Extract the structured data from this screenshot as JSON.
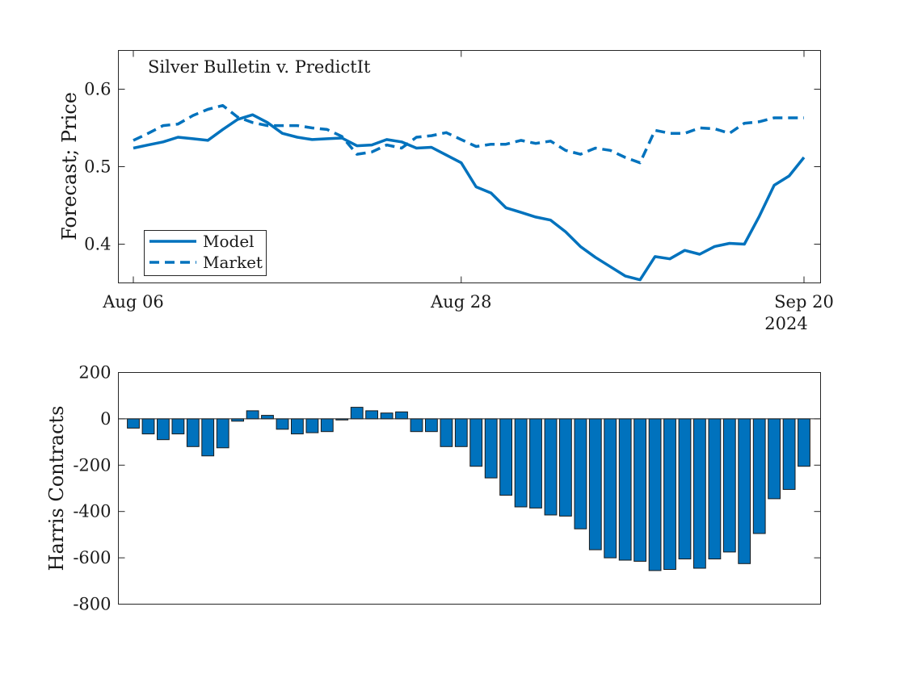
{
  "chart_data": [
    {
      "type": "line",
      "title": "Silver Bulletin v. PredictIt",
      "xlabel": "",
      "ylabel": "Forecast; Price",
      "xlim": [
        0,
        45
      ],
      "ylim": [
        0.35,
        0.65
      ],
      "yticks": [
        0.4,
        0.5,
        0.6
      ],
      "ytick_labels": [
        "0.4",
        "0.5",
        "0.6"
      ],
      "xticks": [
        0,
        22,
        45
      ],
      "xtick_labels": [
        "Aug 06",
        "Aug 28",
        "Sep 20"
      ],
      "x_secondary_label": "2024",
      "legend_position": "bottom-left",
      "grid": false,
      "color": "#0072bd",
      "series": [
        {
          "name": "Model",
          "style": "solid",
          "x": [
            0,
            1,
            2,
            3,
            4,
            5,
            6,
            7,
            8,
            9,
            10,
            11,
            12,
            13,
            14,
            15,
            16,
            17,
            18,
            19,
            20,
            21,
            22,
            23,
            24,
            25,
            26,
            27,
            28,
            29,
            30,
            31,
            32,
            33,
            34,
            35,
            36,
            37,
            38,
            39,
            40,
            41,
            42,
            43,
            44,
            45
          ],
          "values": [
            0.524,
            0.528,
            0.532,
            0.538,
            0.536,
            0.534,
            0.548,
            0.561,
            0.567,
            0.557,
            0.543,
            0.538,
            0.535,
            0.536,
            0.537,
            0.527,
            0.528,
            0.535,
            0.532,
            0.524,
            0.525,
            0.515,
            0.505,
            0.474,
            0.466,
            0.447,
            0.441,
            0.435,
            0.431,
            0.416,
            0.397,
            0.383,
            0.371,
            0.359,
            0.354,
            0.384,
            0.381,
            0.392,
            0.387,
            0.397,
            0.401,
            0.4,
            0.436,
            0.476,
            0.488,
            0.512
          ]
        },
        {
          "name": "Market",
          "style": "dashed",
          "x": [
            0,
            1,
            2,
            3,
            4,
            5,
            6,
            7,
            8,
            9,
            10,
            11,
            12,
            13,
            14,
            15,
            16,
            17,
            18,
            19,
            20,
            21,
            22,
            23,
            24,
            25,
            26,
            27,
            28,
            29,
            30,
            31,
            32,
            33,
            34,
            35,
            36,
            37,
            38,
            39,
            40,
            41,
            42,
            43,
            44,
            45
          ],
          "values": [
            0.534,
            0.543,
            0.553,
            0.555,
            0.566,
            0.574,
            0.579,
            0.564,
            0.557,
            0.553,
            0.553,
            0.553,
            0.55,
            0.548,
            0.539,
            0.516,
            0.519,
            0.528,
            0.524,
            0.538,
            0.54,
            0.544,
            0.535,
            0.526,
            0.529,
            0.529,
            0.534,
            0.53,
            0.533,
            0.521,
            0.516,
            0.524,
            0.521,
            0.512,
            0.505,
            0.547,
            0.543,
            0.543,
            0.55,
            0.549,
            0.543,
            0.556,
            0.558,
            0.563,
            0.563,
            0.563
          ]
        }
      ]
    },
    {
      "type": "bar",
      "title": "",
      "xlabel": "",
      "ylabel": "Harris Contracts",
      "xlim": [
        0,
        45
      ],
      "ylim": [
        -800,
        200
      ],
      "yticks": [
        -800,
        -600,
        -400,
        -200,
        0,
        200
      ],
      "ytick_labels": [
        "-800",
        "-600",
        "-400",
        "-200",
        "0",
        "200"
      ],
      "grid": false,
      "color": "#0072bd",
      "series": [
        {
          "name": "",
          "x": [
            0,
            1,
            2,
            3,
            4,
            5,
            6,
            7,
            8,
            9,
            10,
            11,
            12,
            13,
            14,
            15,
            16,
            17,
            18,
            19,
            20,
            21,
            22,
            23,
            24,
            25,
            26,
            27,
            28,
            29,
            30,
            31,
            32,
            33,
            34,
            35,
            36,
            37,
            38,
            39,
            40,
            41,
            42,
            43,
            44,
            45
          ],
          "values": [
            -40,
            -65,
            -90,
            -65,
            -120,
            -160,
            -125,
            -10,
            35,
            15,
            -45,
            -65,
            -60,
            -55,
            -5,
            50,
            35,
            25,
            30,
            -55,
            -55,
            -120,
            -120,
            -205,
            -255,
            -330,
            -380,
            -385,
            -415,
            -420,
            -475,
            -565,
            -600,
            -610,
            -615,
            -655,
            -650,
            -605,
            -645,
            -605,
            -575,
            -625,
            -495,
            -345,
            -305,
            -205
          ]
        }
      ]
    }
  ]
}
